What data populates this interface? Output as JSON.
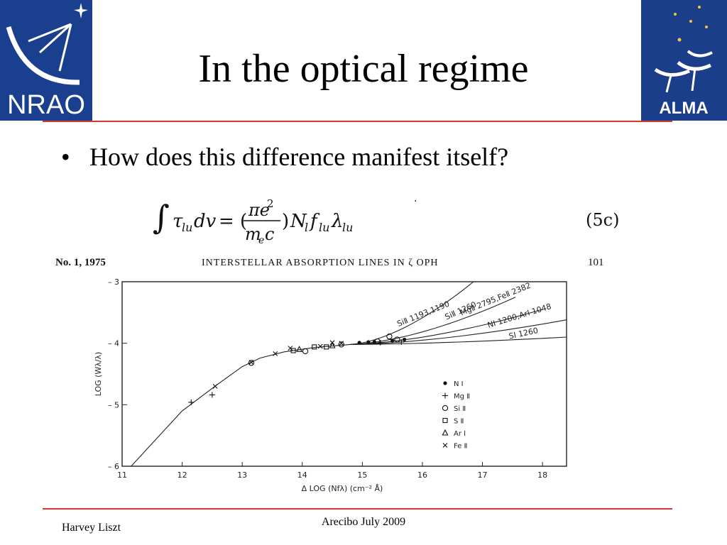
{
  "slide": {
    "title": "In the optical regime",
    "bullet": "How does this difference manifest itself?",
    "footer_left": "Harvey Liszt",
    "footer_center": "Arecibo July 2009"
  },
  "logos": {
    "left": "NRAO",
    "right": "ALMA"
  },
  "equation": {
    "number": "(5c)"
  },
  "paper_header": {
    "left": "No. 1, 1975",
    "center": "INTERSTELLAR ABSORPTION LINES IN ζ OPH",
    "right": "101"
  },
  "colors": {
    "rule": "#d43a2f",
    "nrao_blue": "#1a3f8f",
    "alma_blue": "#1b3e8a"
  },
  "chart_data": {
    "type": "scatter",
    "xlabel": "Δ LOG (Nfλ)   (cm⁻² Å)",
    "ylabel": "LOG (Wλ/λ)",
    "xlim": [
      11,
      18.4
    ],
    "ylim": [
      -6,
      -3
    ],
    "x_ticks": [
      "11",
      "12",
      "13",
      "14",
      "15",
      "16",
      "17",
      "18"
    ],
    "y_ticks": [
      "-3",
      "-4",
      "-5",
      "-6"
    ],
    "curve_labels": [
      "SiⅡ 1193,1190",
      "SiⅡ 1260",
      "MgⅡ 2795,FeⅡ 2382",
      "NI 1200,ArI 1048",
      "SI 1260"
    ],
    "legend_position": "lower-right",
    "series": [
      {
        "name": "N I",
        "marker": "dot",
        "points": [
          [
            14.95,
            -3.99
          ],
          [
            15.1,
            -3.98
          ],
          [
            15.2,
            -3.98
          ],
          [
            15.5,
            -3.96
          ],
          [
            15.7,
            -3.94
          ]
        ]
      },
      {
        "name": "Mg Ⅱ",
        "marker": "plus",
        "points": [
          [
            12.15,
            -4.96
          ],
          [
            12.5,
            -4.84
          ],
          [
            15.3,
            -3.99
          ],
          [
            15.65,
            -3.98
          ]
        ]
      },
      {
        "name": "Si Ⅱ",
        "marker": "circle",
        "points": [
          [
            13.15,
            -4.32
          ],
          [
            14.05,
            -4.13
          ],
          [
            14.65,
            -4.02
          ],
          [
            15.25,
            -3.97
          ],
          [
            15.45,
            -3.89
          ],
          [
            15.58,
            -3.94
          ]
        ]
      },
      {
        "name": "S Ⅱ",
        "marker": "square",
        "points": [
          [
            13.85,
            -4.12
          ],
          [
            14.2,
            -4.06
          ],
          [
            14.4,
            -4.06
          ]
        ]
      },
      {
        "name": "Ar I",
        "marker": "triangle",
        "points": [
          [
            13.95,
            -4.1
          ],
          [
            14.5,
            -4.04
          ]
        ]
      },
      {
        "name": "Fe Ⅱ",
        "marker": "cross",
        "points": [
          [
            12.55,
            -4.7
          ],
          [
            13.15,
            -4.31
          ],
          [
            13.55,
            -4.17
          ],
          [
            13.8,
            -4.08
          ],
          [
            14.3,
            -4.05
          ],
          [
            14.5,
            -3.99
          ],
          [
            14.65,
            -4.0
          ]
        ]
      }
    ]
  }
}
